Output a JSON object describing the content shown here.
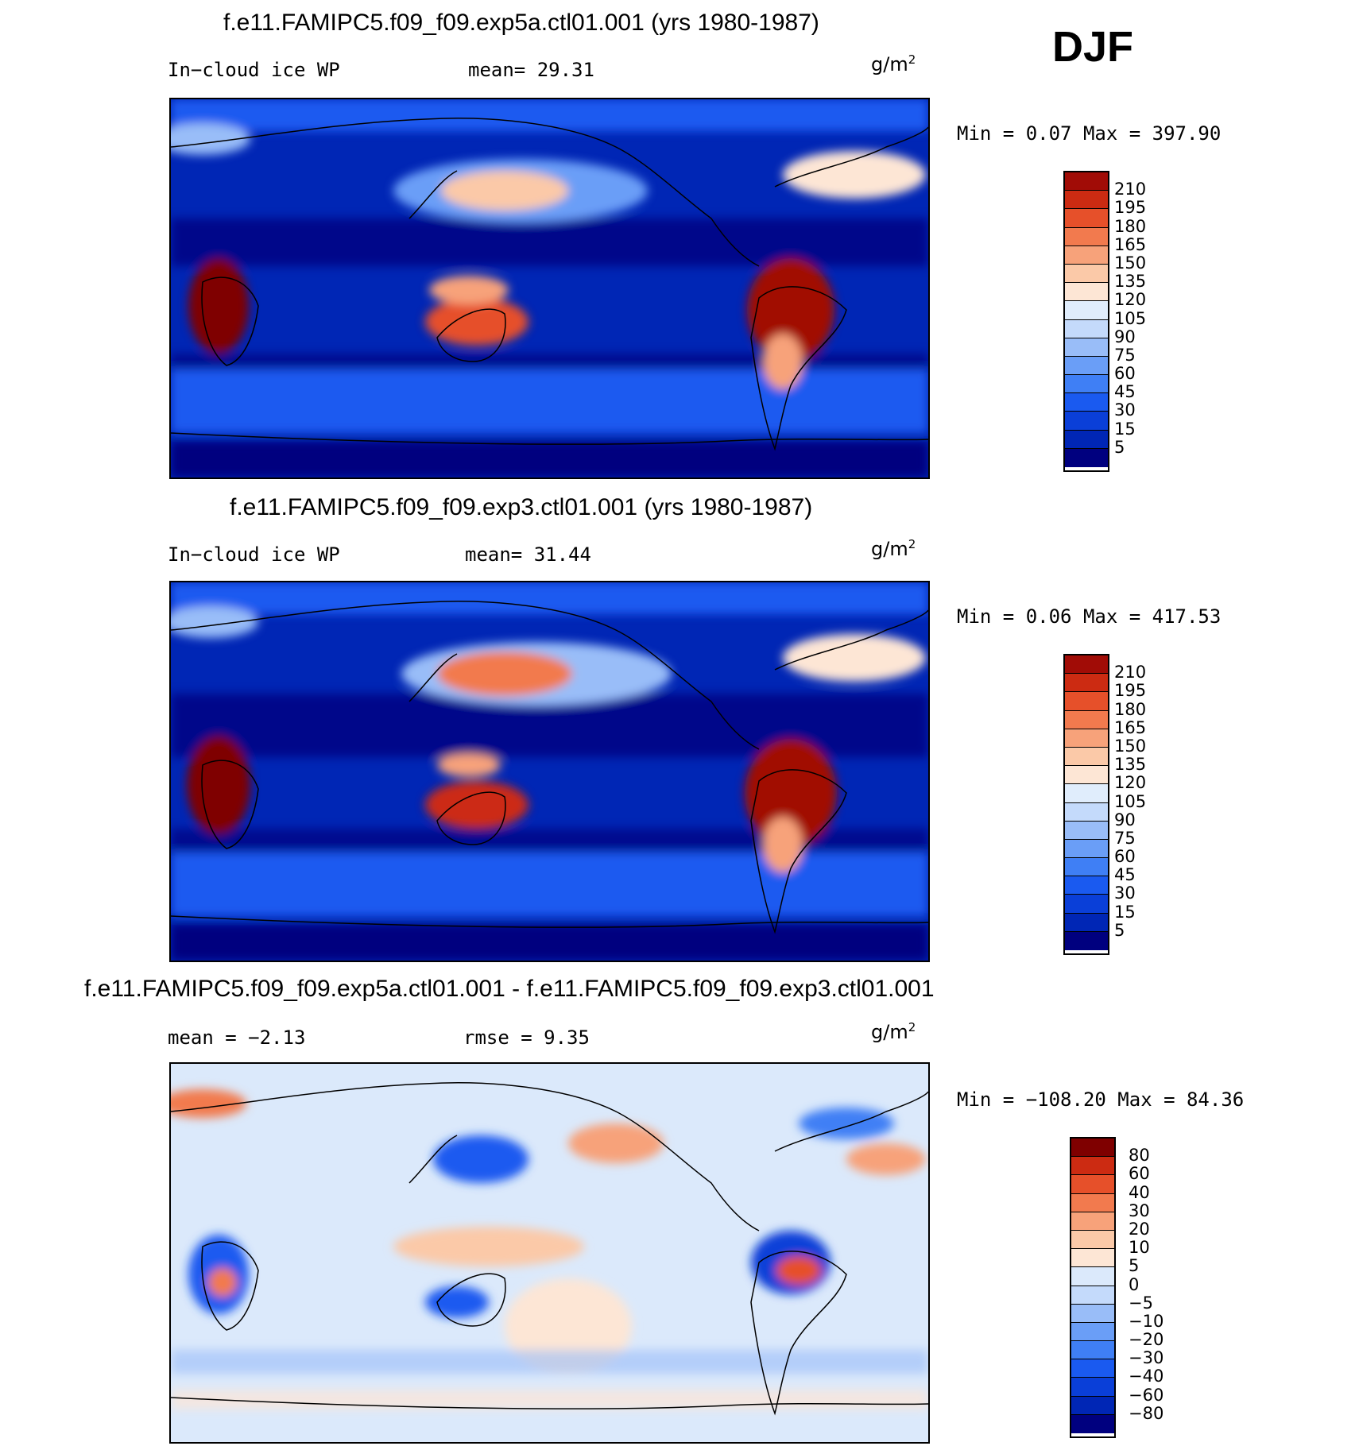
{
  "season": "DJF",
  "colors": {
    "seq": [
      "#00007f",
      "#0026b5",
      "#0a3fd8",
      "#1a5af0",
      "#3f7ff5",
      "#6a9ef7",
      "#99bdf8",
      "#c4dafb",
      "#e0edfc",
      "#fde6d5",
      "#fbc9a8",
      "#f7a27a",
      "#f27a4e",
      "#e6502a",
      "#cc2b12",
      "#a10c06",
      "#7f0000"
    ],
    "diff": [
      "#00007f",
      "#0026b5",
      "#0a3fd8",
      "#1a5af0",
      "#3f7ff5",
      "#6a9ef7",
      "#99bdf8",
      "#c4dafb",
      "#dbe9fb",
      "#fde6d5",
      "#fbc9a8",
      "#f7a27a",
      "#f27a4e",
      "#e6502a",
      "#cc2b12",
      "#7f0000"
    ]
  },
  "panels": [
    {
      "id": "panel1",
      "title": "f.e11.FAMIPC5.f09_f09.exp5a.ctl01.001 (yrs 1980-1987)",
      "left_label": "In−cloud ice WP",
      "mid_label": "mean=   29.31",
      "units_base": "g/m",
      "units_exp": "2",
      "minmax": "Min =    0.07 Max = 397.90",
      "levels": [
        "210",
        "195",
        "180",
        "165",
        "150",
        "135",
        "120",
        "105",
        "90",
        "75",
        "60",
        "45",
        "30",
        "15",
        "5"
      ]
    },
    {
      "id": "panel2",
      "title": "f.e11.FAMIPC5.f09_f09.exp3.ctl01.001 (yrs 1980-1987)",
      "left_label": "In−cloud ice WP",
      "mid_label": "mean=   31.44",
      "units_base": "g/m",
      "units_exp": "2",
      "minmax": "Min =    0.06 Max = 417.53",
      "levels": [
        "210",
        "195",
        "180",
        "165",
        "150",
        "135",
        "120",
        "105",
        "90",
        "75",
        "60",
        "45",
        "30",
        "15",
        "5"
      ]
    },
    {
      "id": "panel3",
      "title": "f.e11.FAMIPC5.f09_f09.exp5a.ctl01.001 - f.e11.FAMIPC5.f09_f09.exp3.ctl01.001",
      "left_label": "mean =   −2.13",
      "mid_label": "rmse =     9.35",
      "units_base": "g/m",
      "units_exp": "2",
      "minmax": "Min = −108.20 Max =   84.36",
      "levels": [
        "80",
        "60",
        "40",
        "30",
        "20",
        "10",
        "5",
        "0",
        "−5",
        "−10",
        "−20",
        "−30",
        "−40",
        "−60",
        "−80"
      ]
    }
  ]
}
